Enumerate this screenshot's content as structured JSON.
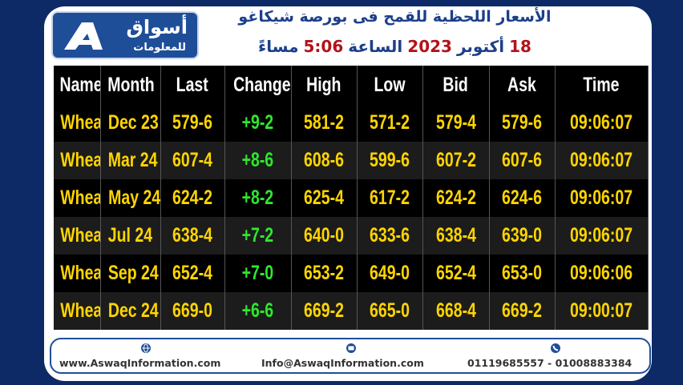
{
  "header": {
    "logo_title": "أسواق",
    "logo_subtitle": "للمعلومات",
    "title": "الأسعار اللحظية للقمح فى بورصة شيكاغو",
    "date_line": [
      "18",
      "أكتوبر",
      "2023",
      "الساعة",
      "5:06",
      "مساءً"
    ]
  },
  "table": {
    "columns": [
      "Name",
      "Month",
      "Last",
      "Change",
      "High",
      "Low",
      "Bid",
      "Ask",
      "Time"
    ],
    "rows": [
      [
        "Wheat",
        "Dec 23",
        "579-6",
        "+9-2",
        "581-2",
        "571-2",
        "579-4",
        "579-6",
        "09:06:07"
      ],
      [
        "Wheat",
        "Mar 24",
        "607-4",
        "+8-6",
        "608-6",
        "599-6",
        "607-2",
        "607-6",
        "09:06:07"
      ],
      [
        "Wheat",
        "May 24",
        "624-2",
        "+8-2",
        "625-4",
        "617-2",
        "624-2",
        "624-6",
        "09:06:07"
      ],
      [
        "Wheat",
        "Jul 24",
        "638-4",
        "+7-2",
        "640-0",
        "633-6",
        "638-4",
        "639-0",
        "09:06:07"
      ],
      [
        "Wheat",
        "Sep 24",
        "652-4",
        "+7-0",
        "653-2",
        "649-0",
        "652-4",
        "653-0",
        "09:06:06"
      ],
      [
        "Wheat",
        "Dec 24",
        "669-0",
        "+6-6",
        "669-2",
        "665-0",
        "668-4",
        "669-2",
        "09:00:07"
      ]
    ]
  },
  "footer": {
    "website": "www.AswaqInformation.com",
    "email": "Info@AswaqInformation.com",
    "phones": "01119685557 - 01008883384"
  }
}
